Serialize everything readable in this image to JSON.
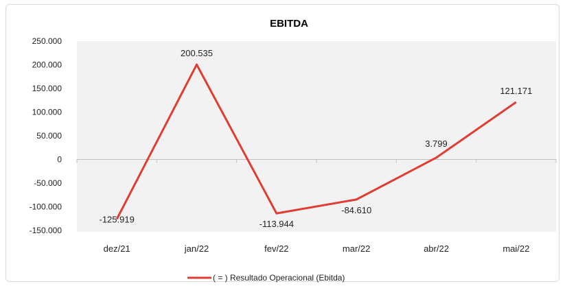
{
  "chart_data": {
    "type": "line",
    "title": "EBITDA",
    "categories": [
      "dez/21",
      "jan/22",
      "fev/22",
      "mar/22",
      "abr/22",
      "mai/22"
    ],
    "series": [
      {
        "name": "( = ) Resultado Operacional (Ebitda)",
        "values": [
          -125919,
          200535,
          -113944,
          -84610,
          3799,
          121171
        ],
        "labels": [
          "-125.919",
          "200.535",
          "-113.944",
          "-84.610",
          "3.799",
          "121.171"
        ],
        "color": "#e03c31"
      }
    ],
    "ylim": [
      -150000,
      250000
    ],
    "yticks": [
      250000,
      200000,
      150000,
      100000,
      50000,
      0,
      -50000,
      -100000,
      -150000
    ],
    "ytick_labels": [
      "250.000",
      "200.000",
      "150.000",
      "100.000",
      "50.000",
      "0",
      "-50.000",
      "-100.000",
      "-150.000"
    ],
    "plot_background": "#f2f2f2",
    "grid": false,
    "legend_position": "bottom"
  }
}
